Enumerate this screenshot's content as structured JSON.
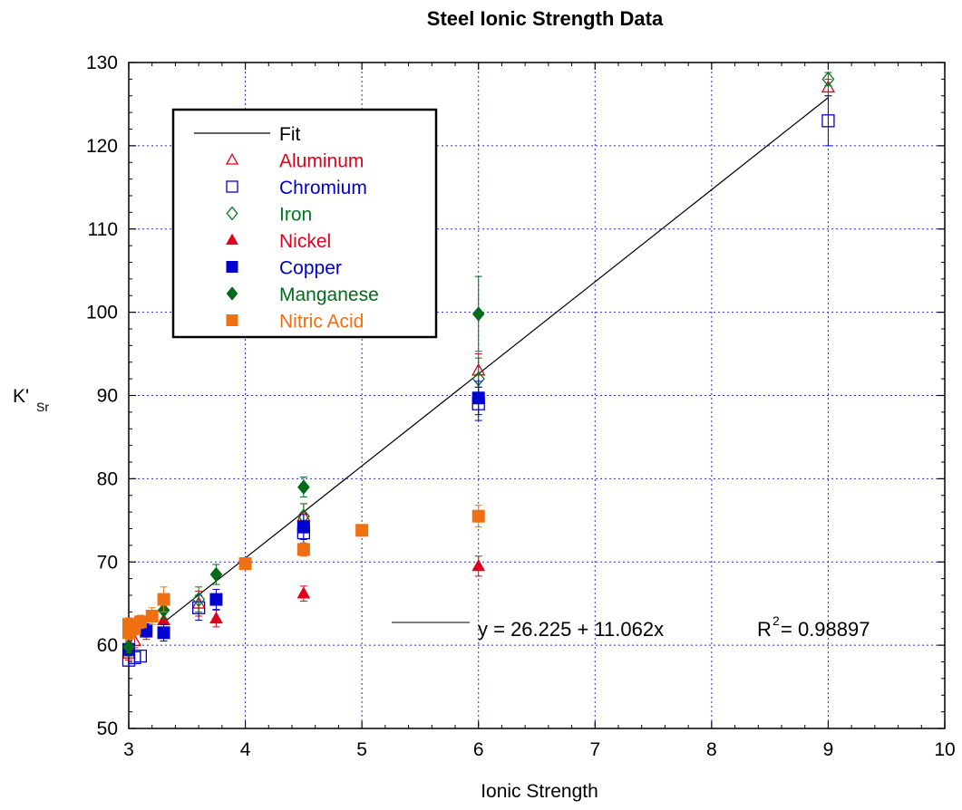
{
  "chart_data": {
    "type": "scatter",
    "title": "Steel Ionic Strength Data",
    "xlabel": "Ionic Strength",
    "ylabel_main": "K'",
    "ylabel_sub": "Sr",
    "xlim": [
      3,
      10
    ],
    "ylim": [
      50,
      130
    ],
    "x_ticks": [
      "3",
      "4",
      "5",
      "6",
      "7",
      "8",
      "9",
      "10"
    ],
    "y_ticks": [
      "50",
      "60",
      "70",
      "80",
      "90",
      "100",
      "110",
      "120",
      "130"
    ],
    "grid": true,
    "legend_placement": "upper-left",
    "fit": {
      "name": "Fit",
      "intercept": 26.225,
      "slope": 11.062,
      "x_range": [
        3.3,
        9.0
      ],
      "equation_label": "y = 26.225 + 11.062x",
      "r2_label": "R",
      "r2_sup": "2",
      "r2_value": "= 0.98897",
      "color": "#000000"
    },
    "series": [
      {
        "name": "Aluminum",
        "marker": "triangle-open",
        "color": "#e0001b",
        "points": [
          {
            "x": 3.0,
            "y": 59.0,
            "err": 0.8
          },
          {
            "x": 3.05,
            "y": 60.5,
            "err": 0.8
          },
          {
            "x": 3.6,
            "y": 65.0,
            "err": 1.5
          },
          {
            "x": 4.5,
            "y": 75.5,
            "err": 1.5
          },
          {
            "x": 6.0,
            "y": 93.0,
            "err": 2.0
          },
          {
            "x": 9.0,
            "y": 127.0,
            "err": 1.0
          }
        ]
      },
      {
        "name": "Chromium",
        "marker": "square-open",
        "color": "#0000d0",
        "points": [
          {
            "x": 3.0,
            "y": 58.2,
            "err": 0.7
          },
          {
            "x": 3.05,
            "y": 58.5,
            "err": 0.7
          },
          {
            "x": 3.1,
            "y": 58.7,
            "err": 0.7
          },
          {
            "x": 3.6,
            "y": 64.5,
            "err": 1.5
          },
          {
            "x": 4.5,
            "y": 73.5,
            "err": 1.5
          },
          {
            "x": 6.0,
            "y": 89.0,
            "err": 2.0
          },
          {
            "x": 9.0,
            "y": 123.0,
            "err": 3.0
          }
        ]
      },
      {
        "name": "Iron",
        "marker": "diamond-open",
        "color": "#007a1e",
        "points": [
          {
            "x": 3.0,
            "y": 59.5,
            "err": 0.8
          },
          {
            "x": 3.6,
            "y": 65.5,
            "err": 1.5
          },
          {
            "x": 4.5,
            "y": 75.5,
            "err": 1.5
          },
          {
            "x": 6.0,
            "y": 92.0,
            "err": 2.5
          },
          {
            "x": 9.0,
            "y": 128.0,
            "err": 0.8
          }
        ]
      },
      {
        "name": "Nickel",
        "marker": "triangle-filled",
        "color": "#e0001b",
        "points": [
          {
            "x": 3.0,
            "y": 60.0,
            "err": 0.7
          },
          {
            "x": 3.15,
            "y": 61.5,
            "err": 0.8
          },
          {
            "x": 3.3,
            "y": 63.0,
            "err": 1.0
          },
          {
            "x": 3.75,
            "y": 63.2,
            "err": 1.0
          },
          {
            "x": 4.5,
            "y": 66.2,
            "err": 0.9
          },
          {
            "x": 6.0,
            "y": 69.5,
            "err": 1.2
          }
        ]
      },
      {
        "name": "Copper",
        "marker": "square-filled",
        "color": "#0000d0",
        "points": [
          {
            "x": 3.0,
            "y": 59.5,
            "err": 0.7
          },
          {
            "x": 3.15,
            "y": 61.8,
            "err": 0.8
          },
          {
            "x": 3.3,
            "y": 61.5,
            "err": 1.0
          },
          {
            "x": 3.75,
            "y": 65.5,
            "err": 1.2
          },
          {
            "x": 4.5,
            "y": 74.2,
            "err": 1.5
          },
          {
            "x": 6.0,
            "y": 89.7,
            "err": 2.0
          }
        ]
      },
      {
        "name": "Manganese",
        "marker": "diamond-filled",
        "color": "#006b18",
        "points": [
          {
            "x": 3.0,
            "y": 59.8,
            "err": 0.7
          },
          {
            "x": 3.3,
            "y": 64.2,
            "err": 1.0
          },
          {
            "x": 3.75,
            "y": 68.5,
            "err": 1.2
          },
          {
            "x": 4.5,
            "y": 79.0,
            "err": 1.2
          },
          {
            "x": 6.0,
            "y": 99.8,
            "err": 4.5
          }
        ]
      },
      {
        "name": "Nitric Acid",
        "marker": "square-filled",
        "color": "#ee7013",
        "points": [
          {
            "x": 3.0,
            "y": 61.5,
            "err": 0.8
          },
          {
            "x": 3.0,
            "y": 62.5,
            "err": 0.8
          },
          {
            "x": 3.05,
            "y": 62.0,
            "err": 0.8
          },
          {
            "x": 3.1,
            "y": 62.8,
            "err": 0.8
          },
          {
            "x": 3.2,
            "y": 63.5,
            "err": 1.0
          },
          {
            "x": 3.3,
            "y": 65.5,
            "err": 1.5
          },
          {
            "x": 4.0,
            "y": 69.8,
            "err": 0.7
          },
          {
            "x": 4.5,
            "y": 71.5,
            "err": 0.8
          },
          {
            "x": 5.0,
            "y": 73.8,
            "err": 0.7
          },
          {
            "x": 6.0,
            "y": 75.5,
            "err": 1.3
          }
        ]
      }
    ]
  }
}
